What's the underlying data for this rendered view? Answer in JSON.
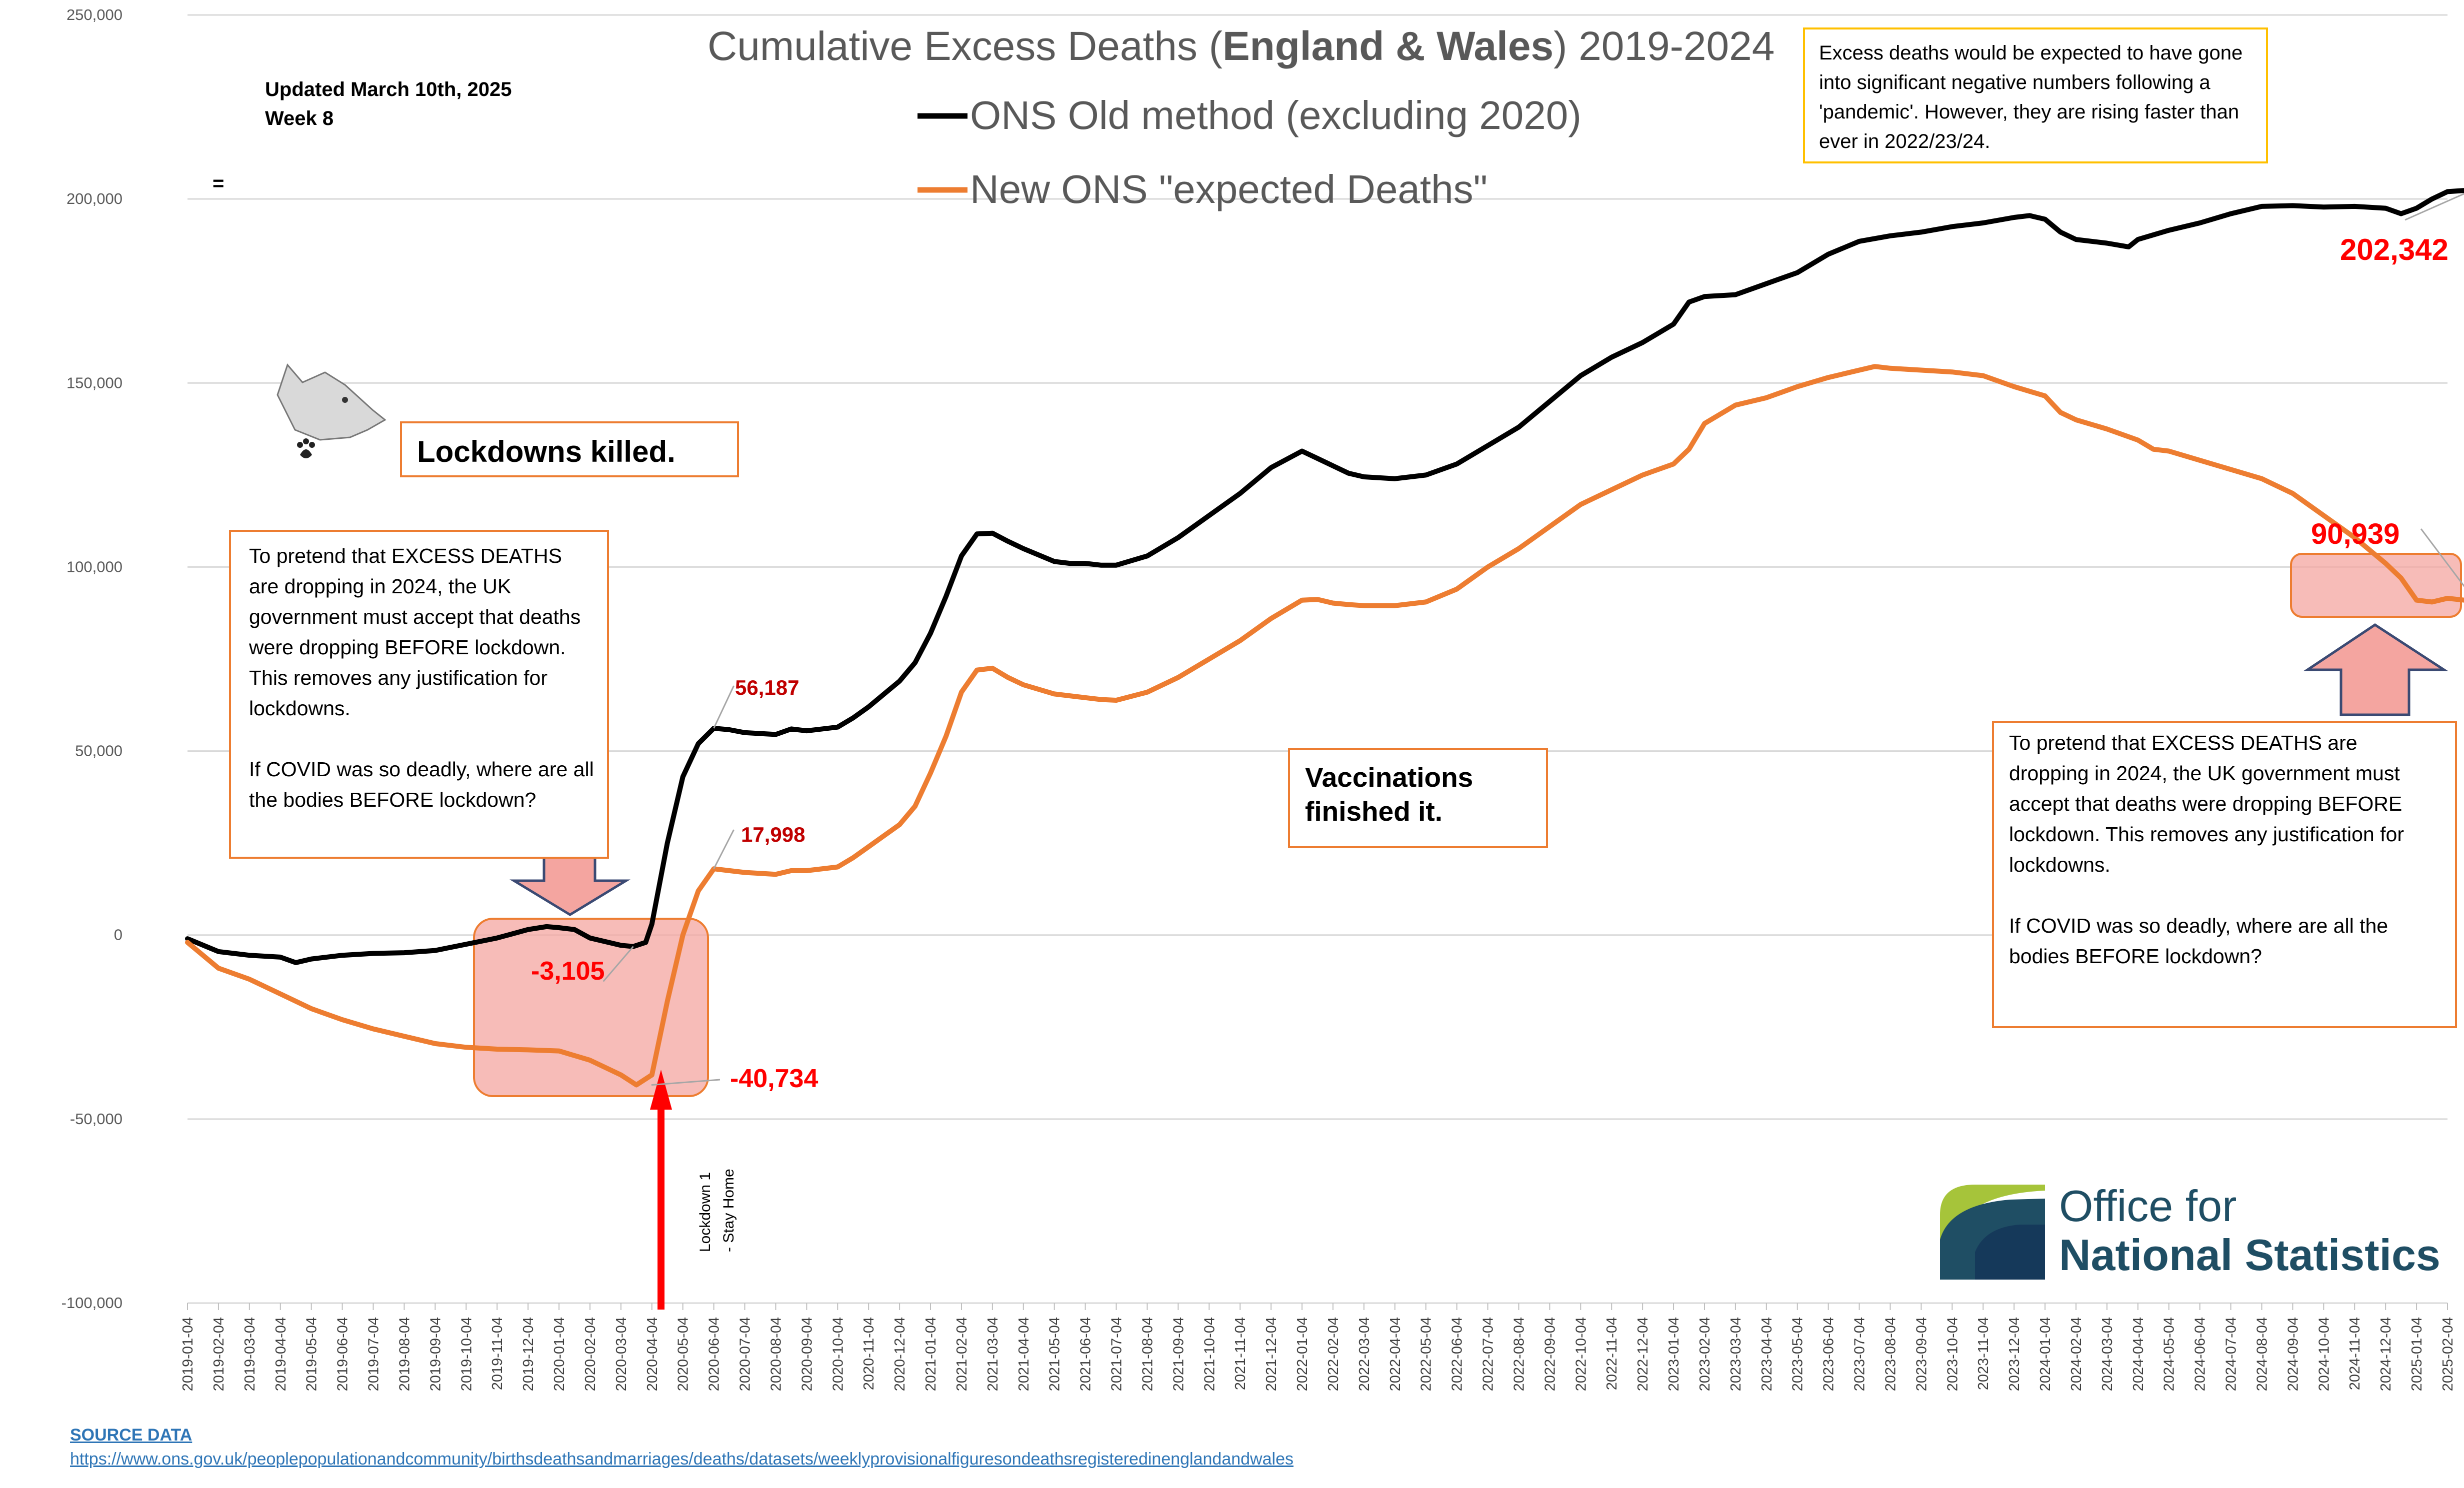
{
  "chart_data": {
    "type": "line",
    "title_parts": [
      "Cumulative Excess Deaths (",
      "England & Wales",
      ") 2019-2024"
    ],
    "updated_line1": "Updated March 10th, 2025",
    "updated_line2": "Week 8",
    "stray_mark": "=",
    "ylim": [
      -100000,
      250000
    ],
    "y_ticks": [
      {
        "value": 250000,
        "label": "250,000"
      },
      {
        "value": 200000,
        "label": "200,000"
      },
      {
        "value": 150000,
        "label": "150,000"
      },
      {
        "value": 100000,
        "label": "100,000"
      },
      {
        "value": 50000,
        "label": "50,000"
      },
      {
        "value": 0,
        "label": "0"
      },
      {
        "value": -50000,
        "label": "-50,000"
      },
      {
        "value": -100000,
        "label": "-100,000"
      }
    ],
    "x_labels": [
      "2019-01-04",
      "2019-02-04",
      "2019-03-04",
      "2019-04-04",
      "2019-05-04",
      "2019-06-04",
      "2019-07-04",
      "2019-08-04",
      "2019-09-04",
      "2019-10-04",
      "2019-11-04",
      "2019-12-04",
      "2020-01-04",
      "2020-02-04",
      "2020-03-04",
      "2020-04-04",
      "2020-05-04",
      "2020-06-04",
      "2020-07-04",
      "2020-08-04",
      "2020-09-04",
      "2020-10-04",
      "2020-11-04",
      "2020-12-04",
      "2021-01-04",
      "2021-02-04",
      "2021-03-04",
      "2021-04-04",
      "2021-05-04",
      "2021-06-04",
      "2021-07-04",
      "2021-08-04",
      "2021-09-04",
      "2021-10-04",
      "2021-11-04",
      "2021-12-04",
      "2022-01-04",
      "2022-02-04",
      "2022-03-04",
      "2022-04-04",
      "2022-05-04",
      "2022-06-04",
      "2022-07-04",
      "2022-08-04",
      "2022-09-04",
      "2022-10-04",
      "2022-11-04",
      "2022-12-04",
      "2023-01-04",
      "2023-02-04",
      "2023-03-04",
      "2023-04-04",
      "2023-05-04",
      "2023-06-04",
      "2023-07-04",
      "2023-08-04",
      "2023-09-04",
      "2023-10-04",
      "2023-11-04",
      "2023-12-04",
      "2024-01-04",
      "2024-02-04",
      "2024-03-04",
      "2024-04-04",
      "2024-05-04",
      "2024-06-04",
      "2024-07-04",
      "2024-08-04",
      "2024-09-04",
      "2024-10-04",
      "2024-11-04",
      "2024-12-04",
      "2025-01-04",
      "2025-02-04"
    ],
    "series": [
      {
        "name": "ONS Old method (excluding 2020)",
        "color": "#000000",
        "points": [
          [
            0,
            -1000
          ],
          [
            1,
            -4500
          ],
          [
            1.5,
            -5000
          ],
          [
            2,
            -5500
          ],
          [
            3,
            -6000
          ],
          [
            3.5,
            -7500
          ],
          [
            4,
            -6500
          ],
          [
            5,
            -5500
          ],
          [
            6,
            -5000
          ],
          [
            7,
            -4800
          ],
          [
            8,
            -4200
          ],
          [
            9,
            -2500
          ],
          [
            10,
            -800
          ],
          [
            11,
            1500
          ],
          [
            11.6,
            2300
          ],
          [
            12,
            2000
          ],
          [
            12.5,
            1500
          ],
          [
            13,
            -800
          ],
          [
            14,
            -2800
          ],
          [
            14.4,
            -3105
          ],
          [
            14.8,
            -2000
          ],
          [
            15,
            3000
          ],
          [
            15.5,
            25000
          ],
          [
            16,
            43000
          ],
          [
            16.5,
            52000
          ],
          [
            17,
            56187
          ],
          [
            17.5,
            55800
          ],
          [
            18,
            55000
          ],
          [
            19,
            54500
          ],
          [
            19.5,
            56000
          ],
          [
            20,
            55500
          ],
          [
            21,
            56500
          ],
          [
            21.5,
            59000
          ],
          [
            22,
            62000
          ],
          [
            23,
            69000
          ],
          [
            23.5,
            74000
          ],
          [
            24,
            82000
          ],
          [
            24.5,
            92000
          ],
          [
            25,
            103000
          ],
          [
            25.5,
            109000
          ],
          [
            26,
            109200
          ],
          [
            26.5,
            107000
          ],
          [
            27,
            105000
          ],
          [
            28,
            101500
          ],
          [
            28.5,
            101000
          ],
          [
            29,
            101000
          ],
          [
            29.5,
            100500
          ],
          [
            30,
            100500
          ],
          [
            31,
            103000
          ],
          [
            32,
            108000
          ],
          [
            33,
            114000
          ],
          [
            34,
            120000
          ],
          [
            35,
            127000
          ],
          [
            36,
            131500
          ],
          [
            36.5,
            129500
          ],
          [
            37,
            127500
          ],
          [
            37.5,
            125500
          ],
          [
            38,
            124500
          ],
          [
            39,
            124000
          ],
          [
            40,
            125000
          ],
          [
            41,
            128000
          ],
          [
            42,
            133000
          ],
          [
            43,
            138000
          ],
          [
            44,
            145000
          ],
          [
            45,
            152000
          ],
          [
            46,
            157000
          ],
          [
            47,
            161000
          ],
          [
            48,
            166000
          ],
          [
            48.5,
            172000
          ],
          [
            49,
            173500
          ],
          [
            50,
            174000
          ],
          [
            51,
            177000
          ],
          [
            52,
            180000
          ],
          [
            53,
            185000
          ],
          [
            54,
            188500
          ],
          [
            55,
            190000
          ],
          [
            56,
            191000
          ],
          [
            57,
            192500
          ],
          [
            58,
            193500
          ],
          [
            59,
            195000
          ],
          [
            59.5,
            195500
          ],
          [
            60,
            194500
          ],
          [
            60.5,
            191000
          ],
          [
            61,
            189000
          ],
          [
            62,
            188000
          ],
          [
            62.7,
            187000
          ],
          [
            63,
            189000
          ],
          [
            64,
            191500
          ],
          [
            65,
            193500
          ],
          [
            66,
            196000
          ],
          [
            67,
            198000
          ],
          [
            68,
            198200
          ],
          [
            69,
            197800
          ],
          [
            70,
            198000
          ],
          [
            71,
            197500
          ],
          [
            71.5,
            196000
          ],
          [
            72,
            197500
          ],
          [
            72.5,
            200000
          ],
          [
            73,
            202000
          ],
          [
            73.6,
            202342
          ]
        ]
      },
      {
        "name": "New ONS \"expected Deaths\"",
        "color": "#ed7d31",
        "points": [
          [
            0,
            -2000
          ],
          [
            1,
            -9000
          ],
          [
            2,
            -12000
          ],
          [
            3,
            -16000
          ],
          [
            4,
            -20000
          ],
          [
            5,
            -23000
          ],
          [
            6,
            -25500
          ],
          [
            7,
            -27500
          ],
          [
            8,
            -29500
          ],
          [
            9,
            -30500
          ],
          [
            10,
            -31000
          ],
          [
            11,
            -31200
          ],
          [
            12,
            -31500
          ],
          [
            13,
            -34000
          ],
          [
            14,
            -38000
          ],
          [
            14.5,
            -40734
          ],
          [
            15,
            -38000
          ],
          [
            15.5,
            -18000
          ],
          [
            16,
            0
          ],
          [
            16.5,
            12000
          ],
          [
            17,
            17998
          ],
          [
            17.5,
            17500
          ],
          [
            18,
            17000
          ],
          [
            19,
            16500
          ],
          [
            19.5,
            17500
          ],
          [
            20,
            17500
          ],
          [
            21,
            18500
          ],
          [
            21.5,
            21000
          ],
          [
            22,
            24000
          ],
          [
            23,
            30000
          ],
          [
            23.5,
            35000
          ],
          [
            24,
            44000
          ],
          [
            24.5,
            54000
          ],
          [
            25,
            66000
          ],
          [
            25.5,
            72000
          ],
          [
            26,
            72500
          ],
          [
            26.5,
            70000
          ],
          [
            27,
            68000
          ],
          [
            28,
            65500
          ],
          [
            28.5,
            65000
          ],
          [
            29,
            64500
          ],
          [
            29.5,
            64000
          ],
          [
            30,
            63800
          ],
          [
            31,
            66000
          ],
          [
            32,
            70000
          ],
          [
            33,
            75000
          ],
          [
            34,
            80000
          ],
          [
            35,
            86000
          ],
          [
            36,
            91000
          ],
          [
            36.5,
            91200
          ],
          [
            37,
            90200
          ],
          [
            37.5,
            89800
          ],
          [
            38,
            89500
          ],
          [
            39,
            89500
          ],
          [
            40,
            90500
          ],
          [
            41,
            94000
          ],
          [
            42,
            100000
          ],
          [
            43,
            105000
          ],
          [
            44,
            111000
          ],
          [
            45,
            117000
          ],
          [
            46,
            121000
          ],
          [
            47,
            125000
          ],
          [
            48,
            128000
          ],
          [
            48.5,
            132000
          ],
          [
            49,
            139000
          ],
          [
            50,
            144000
          ],
          [
            51,
            146000
          ],
          [
            52,
            149000
          ],
          [
            53,
            151500
          ],
          [
            54,
            153500
          ],
          [
            54.5,
            154500
          ],
          [
            55,
            154000
          ],
          [
            56,
            153500
          ],
          [
            57,
            153000
          ],
          [
            58,
            152000
          ],
          [
            59,
            149000
          ],
          [
            60,
            146500
          ],
          [
            60.5,
            142000
          ],
          [
            61,
            140000
          ],
          [
            62,
            137500
          ],
          [
            63,
            134500
          ],
          [
            63.5,
            132000
          ],
          [
            64,
            131500
          ],
          [
            65,
            129000
          ],
          [
            66,
            126500
          ],
          [
            67,
            124000
          ],
          [
            68,
            120000
          ],
          [
            69,
            114000
          ],
          [
            70,
            108000
          ],
          [
            71,
            101000
          ],
          [
            71.5,
            97000
          ],
          [
            72,
            91000
          ],
          [
            72.5,
            90500
          ],
          [
            73,
            91500
          ],
          [
            73.6,
            90939
          ]
        ]
      }
    ],
    "annotations": {
      "black_min": "-3,105",
      "black_peak": "56,187",
      "orange_min": "-40,734",
      "orange_peak": "17,998",
      "black_last": "202,342",
      "orange_last": "90,939"
    },
    "lockdown_label_1": "Lockdown 1",
    "lockdown_label_2": "- Stay Home"
  },
  "boxes": {
    "lockdowns": "Lockdowns killed.",
    "vaccinations_1": "Vaccinations",
    "vaccinations_2": "finished it.",
    "left_note_1": "To pretend that EXCESS DEATHS are dropping in 2024, the UK government must accept that deaths were dropping BEFORE lockdown. This removes any justification for lockdowns.",
    "left_note_2": "If COVID was so deadly, where are all the bodies BEFORE lockdown?",
    "right_note_1": "To pretend that EXCESS DEATHS are dropping in 2024, the UK government must accept that deaths were dropping BEFORE lockdown. This removes any justification for lockdowns.",
    "right_note_2": "If COVID was so deadly, where are all the bodies BEFORE lockdown?",
    "pandemic_note": "Excess deaths would be expected to have gone into significant negative numbers following a 'pandemic'. However, they are rising faster than ever in 2022/23/24."
  },
  "logo": {
    "line1": "Office for",
    "line2": "National Statistics"
  },
  "footer": {
    "source_label": "SOURCE DATA",
    "source_url": "https://www.ons.gov.uk/peoplepopulationandcommunity/birthsdeathsandmarriages/deaths/datasets/weeklyprovisionalfiguresondeathsregisteredinenglandandwales"
  }
}
